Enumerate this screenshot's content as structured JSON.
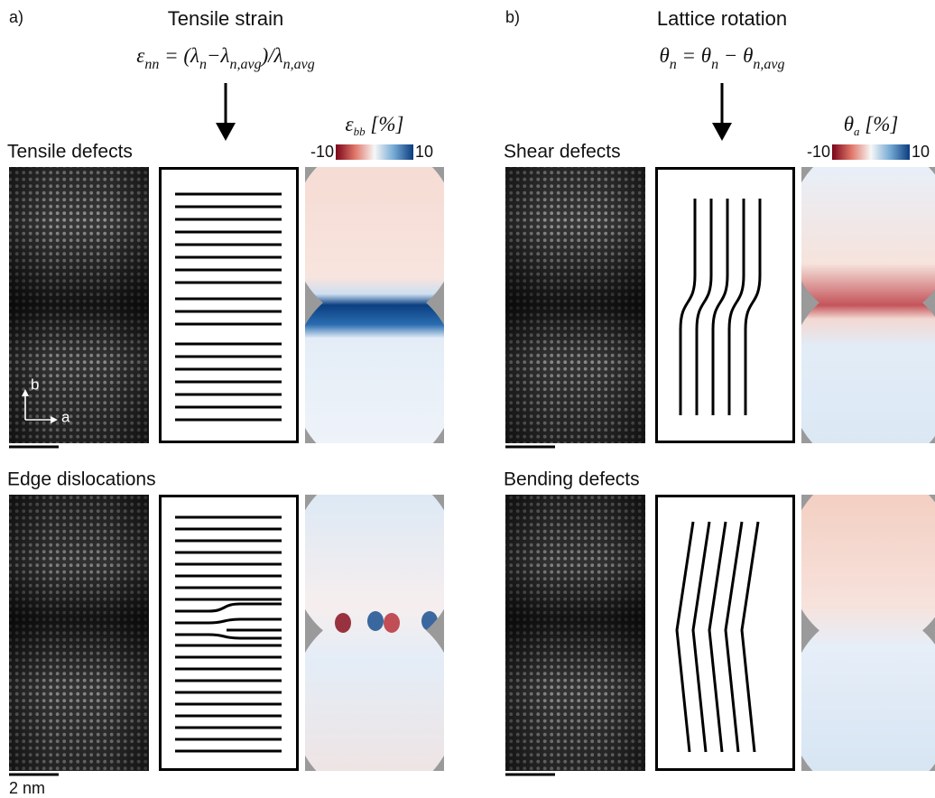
{
  "panel_a": {
    "label": "a)",
    "title": "Tensile strain",
    "formula": [
      "ε",
      "nn",
      " = (λ",
      "n",
      "−λ",
      "n,avg",
      ")/λ",
      "n,avg"
    ],
    "colorbar": {
      "label": [
        "ε",
        "bb",
        " [%]"
      ],
      "min": -10,
      "max": 10
    },
    "rows": [
      {
        "title": "Tensile defects"
      },
      {
        "title": "Edge dislocations"
      }
    ],
    "axis_labels": [
      "b",
      "a"
    ],
    "scale_bar": "2 nm"
  },
  "panel_b": {
    "label": "b)",
    "title": "Lattice rotation",
    "formula": [
      "θ",
      "n",
      " = θ",
      "n",
      " − θ",
      "n,avg"
    ],
    "colorbar": {
      "label": [
        "θ",
        "a",
        " [%]"
      ],
      "min": -10,
      "max": 10
    },
    "rows": [
      {
        "title": "Shear defects"
      },
      {
        "title": "Bending defects"
      }
    ]
  }
}
